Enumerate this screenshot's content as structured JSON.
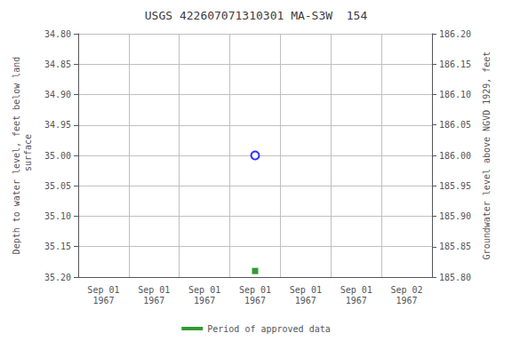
{
  "chart_data": {
    "type": "scatter",
    "title": "USGS 422607071310301 MA-S3W  154",
    "ylabel": "Depth to water level, feet below land\n surface",
    "y2label": "Groundwater level above NGVD 1929, feet",
    "categories": [
      "Sep 01\n1967",
      "Sep 01\n1967",
      "Sep 01\n1967",
      "Sep 01\n1967",
      "Sep 01\n1967",
      "Sep 01\n1967",
      "Sep 02\n1967"
    ],
    "series": [
      {
        "color": "blue",
        "marker": "open_circle",
        "values": [
          null,
          null,
          null,
          35.0,
          null,
          null,
          null
        ]
      },
      {
        "name": "Period of approved data",
        "color": "#008000",
        "marker": "square",
        "values": [
          null,
          null,
          null,
          35.19,
          null,
          null,
          null
        ]
      }
    ],
    "ylim": [
      35.2,
      34.8
    ],
    "yticks": [
      {
        "value": 34.8,
        "label": "34.80"
      },
      34.85,
      {
        "value": 34.9,
        "label": "34.90"
      },
      34.95,
      {
        "value": 35.0,
        "label": "35.00"
      },
      35.05,
      {
        "value": 35.1,
        "label": "35.10"
      },
      35.15,
      {
        "value": 35.2,
        "label": "35.20"
      }
    ],
    "y2lim": [
      185.8,
      186.2
    ],
    "y2ticks": [
      {
        "value": 185.8,
        "label": "185.80"
      },
      185.85,
      {
        "value": 185.9,
        "label": "185.90"
      },
      185.95,
      {
        "value": 186.0,
        "label": "186.00"
      },
      186.05,
      {
        "value": 186.1,
        "label": "186.10"
      },
      186.15,
      {
        "value": 186.2,
        "label": "186.20"
      }
    ],
    "grid": true,
    "legend": "bottom"
  }
}
